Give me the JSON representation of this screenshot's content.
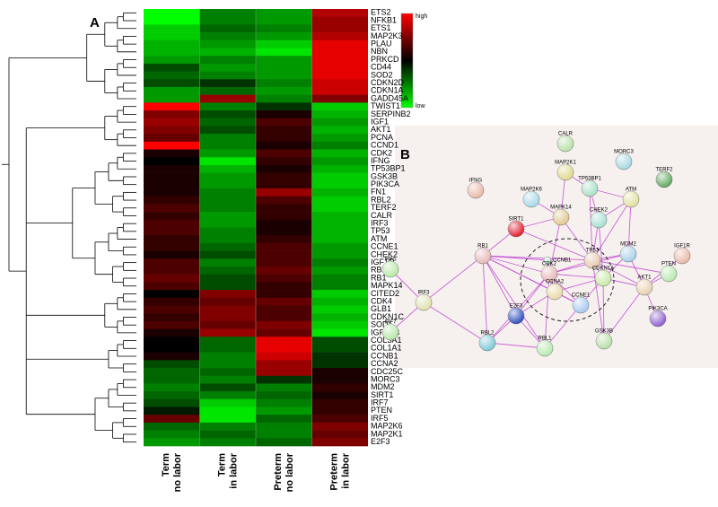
{
  "panel_a": {
    "label": "A",
    "heatmap": {
      "rows": [
        "ETS2",
        "NFKB1",
        "ETS1",
        "MAP2K3",
        "PLAU",
        "NBN",
        "PRKCD",
        "CD44",
        "SOD2",
        "CDKN2D",
        "CDKN1A",
        "GADD45A",
        "TWIST1",
        "SERPINB2",
        "IGF1",
        "AKT1",
        "PCNA",
        "CCND1",
        "CDK2",
        "IFNG",
        "TP53BP1",
        "GSK3B",
        "PIK3CA",
        "FN1",
        "RBL2",
        "TERF2",
        "CALR",
        "IRF3",
        "TP53",
        "ATM",
        "CCNE1",
        "CHEK2",
        "IGF1R",
        "RBL1",
        "RB1",
        "MAPK14",
        "CITED2",
        "CDK4",
        "GLB1",
        "CDKN1C",
        "SOD1",
        "IGFBP3",
        "COL3A1",
        "COL1A1",
        "CCNB1",
        "CCNA2",
        "CDC25C",
        "MORC3",
        "MDM2",
        "SIRT1",
        "IRF7",
        "PTEN",
        "IRF5",
        "MAP2K6",
        "MAP2K1",
        "E2F3"
      ],
      "columns": [
        [
          "Term",
          "no labor"
        ],
        [
          "Term",
          "in labor"
        ],
        [
          "Preterm",
          "no labor"
        ],
        [
          "Preterm",
          "in labor"
        ]
      ],
      "values": [
        [
          -1,
          -0.5,
          -0.6,
          0.7
        ],
        [
          -1,
          -0.5,
          -0.6,
          0.6
        ],
        [
          -0.8,
          -0.4,
          -0.5,
          0.6
        ],
        [
          -0.8,
          -0.5,
          -0.6,
          0.7
        ],
        [
          -0.7,
          -0.6,
          -0.8,
          0.9
        ],
        [
          -0.7,
          -0.7,
          -0.9,
          0.9
        ],
        [
          -0.6,
          -0.5,
          -0.6,
          0.9
        ],
        [
          -0.3,
          -0.6,
          -0.6,
          0.9
        ],
        [
          -0.4,
          -0.5,
          -0.6,
          0.9
        ],
        [
          -0.3,
          -0.2,
          -0.5,
          0.8
        ],
        [
          -0.6,
          -0.4,
          -0.6,
          0.8
        ],
        [
          -0.6,
          0.6,
          -0.5,
          0.5
        ],
        [
          1,
          -0.5,
          -0.2,
          -0.8
        ],
        [
          0.5,
          -0.3,
          0.1,
          -0.7
        ],
        [
          0.6,
          -0.4,
          0.3,
          -0.6
        ],
        [
          0.5,
          -0.3,
          0.2,
          -0.7
        ],
        [
          0.4,
          -0.5,
          0.2,
          -0.6
        ],
        [
          1,
          -0.5,
          0.1,
          -0.5
        ],
        [
          0.1,
          -0.6,
          0.3,
          -0.7
        ],
        [
          0,
          -0.9,
          0.2,
          -0.6
        ],
        [
          0.1,
          -0.7,
          0.1,
          -0.7
        ],
        [
          0.1,
          -0.6,
          0.2,
          -0.8
        ],
        [
          0.1,
          -0.6,
          0.2,
          -0.8
        ],
        [
          0.1,
          -0.5,
          0.6,
          -0.7
        ],
        [
          0.2,
          -0.5,
          0.3,
          -0.8
        ],
        [
          0.3,
          -0.5,
          0.2,
          -0.8
        ],
        [
          0.2,
          -0.6,
          0.2,
          -0.7
        ],
        [
          0.3,
          -0.6,
          0.1,
          -0.7
        ],
        [
          0.3,
          -0.5,
          0.1,
          -0.7
        ],
        [
          0.2,
          -0.5,
          0.2,
          -0.7
        ],
        [
          0.2,
          -0.4,
          0.3,
          -0.6
        ],
        [
          0.1,
          -0.3,
          0.3,
          -0.6
        ],
        [
          0.3,
          -0.5,
          0.3,
          -0.5
        ],
        [
          0.3,
          -0.4,
          0.4,
          -0.6
        ],
        [
          0.4,
          -0.3,
          0.3,
          -0.5
        ],
        [
          0.3,
          -0.3,
          0.2,
          -0.5
        ],
        [
          0,
          0.5,
          0.2,
          -0.8
        ],
        [
          0.2,
          0.4,
          0.4,
          -0.7
        ],
        [
          0.3,
          0.5,
          0.3,
          -0.8
        ],
        [
          0.2,
          0.5,
          0.3,
          -0.7
        ],
        [
          0.3,
          0.4,
          0.5,
          -0.8
        ],
        [
          0.1,
          0.6,
          0.4,
          -0.9
        ],
        [
          0,
          -0.4,
          0.9,
          -0.3
        ],
        [
          0,
          -0.4,
          0.9,
          -0.3
        ],
        [
          0.1,
          -0.5,
          0.8,
          -0.2
        ],
        [
          -0.3,
          -0.5,
          0.6,
          -0.2
        ],
        [
          -0.4,
          -0.4,
          0.6,
          0.1
        ],
        [
          -0.4,
          -0.5,
          -0.2,
          0.1
        ],
        [
          -0.5,
          -0.3,
          -0.5,
          0.2
        ],
        [
          -0.4,
          -0.5,
          -0.4,
          0.1
        ],
        [
          -0.3,
          -0.8,
          -0.5,
          0.2
        ],
        [
          -0.1,
          -0.9,
          -0.6,
          0.2
        ],
        [
          0.4,
          -0.9,
          -0.4,
          0.3
        ],
        [
          -0.4,
          -0.5,
          -0.5,
          0.5
        ],
        [
          -0.5,
          -0.4,
          -0.5,
          0.4
        ],
        [
          -0.6,
          -0.5,
          -0.4,
          0.5
        ]
      ],
      "legend": {
        "high": "high",
        "low": "low"
      }
    }
  },
  "panel_b": {
    "label": "B",
    "nodes": [
      "CALR",
      "MORC3",
      "TERF2",
      "MAP2K1",
      "TP53BP1",
      "IFNG",
      "MAP2K6",
      "ATM",
      "CHEK2",
      "MAPK14",
      "SIRT1",
      "IGF1R",
      "MDM2",
      "RB1",
      "CCNB1",
      "TP53",
      "CDK2",
      "CDKN1A",
      "CCNA2",
      "CCNE1",
      "AKT1",
      "PTEN",
      "IRF5",
      "IRF3",
      "E2F3",
      "PIK3CA",
      "IRF7",
      "RBL2",
      "RBL1",
      "GSK3B"
    ]
  }
}
